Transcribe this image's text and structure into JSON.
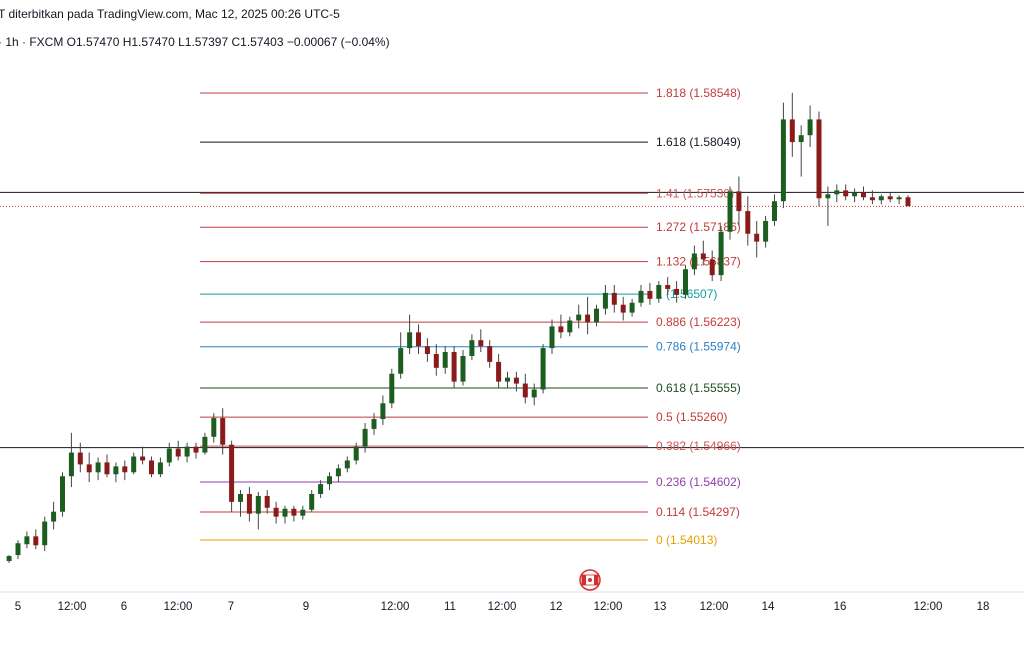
{
  "header": {
    "published": "T diterbitkan pada TradingView.com, Mac 12, 2025 00:26 UTC-5",
    "ohlc": "· 1h · FXCM  O1.57470  H1.57470  L1.57397  C1.57403  −0.00067 (−0.04%)"
  },
  "colors": {
    "up": "#1b5e20",
    "down": "#8b1a1a",
    "fib_red": "#d25353",
    "fib_black": "#131722",
    "fib_teal": "#26a69a",
    "fib_blue": "#2962ff",
    "fib_green": "#2e5a2e",
    "fib_purple": "#8e3fa8",
    "fib_orange": "#e6a000",
    "event_marker": "#d32f2f"
  },
  "event_marker_icon": "canada-flag-icon",
  "chart_data": {
    "type": "candlestick",
    "price_range": [
      1.5378,
      1.587
    ],
    "time_range": [
      0,
      152
    ],
    "fib_levels": [
      {
        "label": "1.818 (1.58548)",
        "price": 1.58548,
        "color": "#c23b3b"
      },
      {
        "label": "1.618 (1.58049)",
        "price": 1.58049,
        "color": "#131722"
      },
      {
        "label": "1.41 (1.57530)",
        "price": 1.5753,
        "color": "#d25353"
      },
      {
        "label": "1.272 (1.57186)",
        "price": 1.57186,
        "color": "#c23b3b"
      },
      {
        "label": "1.132 (1.56837)",
        "price": 1.56837,
        "color": "#c23b3b"
      },
      {
        "label": "1 (1.56507)",
        "price": 1.56507,
        "color": "#139e9e"
      },
      {
        "label": "0.886 (1.56223)",
        "price": 1.56223,
        "color": "#c23b3b"
      },
      {
        "label": "0.786 (1.55974)",
        "price": 1.55974,
        "color": "#2f7fc1"
      },
      {
        "label": "0.618 (1.55555)",
        "price": 1.55555,
        "color": "#1e4d1e"
      },
      {
        "label": "0.5 (1.55260)",
        "price": 1.5526,
        "color": "#c23b3b"
      },
      {
        "label": "0.382 (1.54966)",
        "price": 1.54966,
        "color": "#d25353"
      },
      {
        "label": "0.236 (1.54602)",
        "price": 1.54602,
        "color": "#8e3fa8"
      },
      {
        "label": "0.114 (1.54297)",
        "price": 1.54297,
        "color": "#c23b3b"
      },
      {
        "label": "0 (1.54013)",
        "price": 1.54013,
        "color": "#e6a000"
      }
    ],
    "fib_range_time": [
      38,
      126
    ],
    "horizontal_lines": [
      1.5754,
      1.5495
    ],
    "current_price": 1.57403,
    "x_ticks": [
      {
        "label": "5",
        "t": 0
      },
      {
        "label": "12:00",
        "t": 12
      },
      {
        "label": "6",
        "t": 24
      },
      {
        "label": "12:00",
        "t": 36
      },
      {
        "label": "7",
        "t": 48
      },
      {
        "label": "9",
        "t": 60
      },
      {
        "label": "12:00",
        "t": 72
      },
      {
        "label": "11",
        "t": 84
      },
      {
        "label": "12:00",
        "t": 96
      },
      {
        "label": "12",
        "t": 108
      },
      {
        "label": "12:00",
        "t": 120
      },
      {
        "label": "13",
        "t": 132
      },
      {
        "label": "12:00",
        "t": 144
      },
      {
        "label": "14",
        "t": 156
      },
      {
        "label": "16",
        "t": 168
      },
      {
        "label": "12:00",
        "t": 180
      },
      {
        "label": "18",
        "t": 192
      }
    ],
    "candles": [
      {
        "t": -1,
        "o": 1.538,
        "h": 1.5386,
        "l": 1.5378,
        "c": 1.5385
      },
      {
        "t": 0,
        "o": 1.5386,
        "h": 1.5401,
        "l": 1.5382,
        "c": 1.5398
      },
      {
        "t": 1,
        "o": 1.5397,
        "h": 1.541,
        "l": 1.5393,
        "c": 1.5405
      },
      {
        "t": 2,
        "o": 1.5405,
        "h": 1.5412,
        "l": 1.5392,
        "c": 1.5396
      },
      {
        "t": 3,
        "o": 1.5396,
        "h": 1.5425,
        "l": 1.539,
        "c": 1.542
      },
      {
        "t": 4,
        "o": 1.542,
        "h": 1.544,
        "l": 1.5412,
        "c": 1.543
      },
      {
        "t": 5,
        "o": 1.543,
        "h": 1.547,
        "l": 1.5425,
        "c": 1.5466
      },
      {
        "t": 6,
        "o": 1.5466,
        "h": 1.551,
        "l": 1.5455,
        "c": 1.549
      },
      {
        "t": 7,
        "o": 1.549,
        "h": 1.55,
        "l": 1.547,
        "c": 1.5478
      },
      {
        "t": 8,
        "o": 1.5478,
        "h": 1.549,
        "l": 1.546,
        "c": 1.547
      },
      {
        "t": 9,
        "o": 1.547,
        "h": 1.5485,
        "l": 1.5462,
        "c": 1.548
      },
      {
        "t": 10,
        "o": 1.548,
        "h": 1.5488,
        "l": 1.5465,
        "c": 1.5468
      },
      {
        "t": 11,
        "o": 1.5468,
        "h": 1.548,
        "l": 1.546,
        "c": 1.5476
      },
      {
        "t": 12,
        "o": 1.5476,
        "h": 1.5482,
        "l": 1.5462,
        "c": 1.547
      },
      {
        "t": 13,
        "o": 1.547,
        "h": 1.549,
        "l": 1.5468,
        "c": 1.5486
      },
      {
        "t": 14,
        "o": 1.5486,
        "h": 1.5496,
        "l": 1.5478,
        "c": 1.5482
      },
      {
        "t": 15,
        "o": 1.5482,
        "h": 1.5486,
        "l": 1.5465,
        "c": 1.5468
      },
      {
        "t": 16,
        "o": 1.5468,
        "h": 1.5485,
        "l": 1.5465,
        "c": 1.548
      },
      {
        "t": 17,
        "o": 1.548,
        "h": 1.55,
        "l": 1.5476,
        "c": 1.5494
      },
      {
        "t": 18,
        "o": 1.5494,
        "h": 1.5502,
        "l": 1.5482,
        "c": 1.5486
      },
      {
        "t": 19,
        "o": 1.5486,
        "h": 1.55,
        "l": 1.548,
        "c": 1.5496
      },
      {
        "t": 20,
        "o": 1.5496,
        "h": 1.55,
        "l": 1.5484,
        "c": 1.549
      },
      {
        "t": 21,
        "o": 1.549,
        "h": 1.551,
        "l": 1.5488,
        "c": 1.5506
      },
      {
        "t": 22,
        "o": 1.5506,
        "h": 1.553,
        "l": 1.55,
        "c": 1.5525
      },
      {
        "t": 23,
        "o": 1.5525,
        "h": 1.5535,
        "l": 1.5488,
        "c": 1.5498
      },
      {
        "t": 24,
        "o": 1.5498,
        "h": 1.5502,
        "l": 1.543,
        "c": 1.544
      },
      {
        "t": 25,
        "o": 1.544,
        "h": 1.5452,
        "l": 1.5425,
        "c": 1.5448
      },
      {
        "t": 26,
        "o": 1.5448,
        "h": 1.5455,
        "l": 1.542,
        "c": 1.5428
      },
      {
        "t": 27,
        "o": 1.5428,
        "h": 1.545,
        "l": 1.5412,
        "c": 1.5446
      },
      {
        "t": 28,
        "o": 1.5446,
        "h": 1.5452,
        "l": 1.5428,
        "c": 1.5434
      },
      {
        "t": 29,
        "o": 1.5434,
        "h": 1.544,
        "l": 1.5418,
        "c": 1.5425
      },
      {
        "t": 30,
        "o": 1.5425,
        "h": 1.5436,
        "l": 1.5418,
        "c": 1.5433
      },
      {
        "t": 31,
        "o": 1.5433,
        "h": 1.5436,
        "l": 1.542,
        "c": 1.5426
      },
      {
        "t": 32,
        "o": 1.5426,
        "h": 1.5436,
        "l": 1.5422,
        "c": 1.5432
      },
      {
        "t": 33,
        "o": 1.5432,
        "h": 1.5452,
        "l": 1.543,
        "c": 1.5448
      },
      {
        "t": 34,
        "o": 1.5448,
        "h": 1.5462,
        "l": 1.5444,
        "c": 1.5458
      },
      {
        "t": 35,
        "o": 1.5458,
        "h": 1.547,
        "l": 1.5452,
        "c": 1.5466
      },
      {
        "t": 36,
        "o": 1.5466,
        "h": 1.5478,
        "l": 1.546,
        "c": 1.5474
      },
      {
        "t": 37,
        "o": 1.5474,
        "h": 1.5486,
        "l": 1.547,
        "c": 1.5482
      },
      {
        "t": 38,
        "o": 1.5482,
        "h": 1.55,
        "l": 1.5478,
        "c": 1.5496
      },
      {
        "t": 39,
        "o": 1.5496,
        "h": 1.552,
        "l": 1.549,
        "c": 1.5514
      },
      {
        "t": 40,
        "o": 1.5514,
        "h": 1.553,
        "l": 1.5508,
        "c": 1.5524
      },
      {
        "t": 41,
        "o": 1.5524,
        "h": 1.5548,
        "l": 1.5518,
        "c": 1.554
      },
      {
        "t": 42,
        "o": 1.554,
        "h": 1.5575,
        "l": 1.5535,
        "c": 1.557
      },
      {
        "t": 43,
        "o": 1.557,
        "h": 1.5612,
        "l": 1.5565,
        "c": 1.5596
      },
      {
        "t": 44,
        "o": 1.5596,
        "h": 1.563,
        "l": 1.559,
        "c": 1.5612
      },
      {
        "t": 45,
        "o": 1.5612,
        "h": 1.562,
        "l": 1.559,
        "c": 1.5598
      },
      {
        "t": 46,
        "o": 1.5598,
        "h": 1.5606,
        "l": 1.5582,
        "c": 1.559
      },
      {
        "t": 47,
        "o": 1.559,
        "h": 1.56,
        "l": 1.5568,
        "c": 1.5576
      },
      {
        "t": 48,
        "o": 1.5576,
        "h": 1.5598,
        "l": 1.557,
        "c": 1.5592
      },
      {
        "t": 49,
        "o": 1.5592,
        "h": 1.5598,
        "l": 1.5556,
        "c": 1.5562
      },
      {
        "t": 50,
        "o": 1.5562,
        "h": 1.5594,
        "l": 1.5558,
        "c": 1.5588
      },
      {
        "t": 51,
        "o": 1.5588,
        "h": 1.561,
        "l": 1.5584,
        "c": 1.5604
      },
      {
        "t": 52,
        "o": 1.5604,
        "h": 1.5615,
        "l": 1.5592,
        "c": 1.5598
      },
      {
        "t": 53,
        "o": 1.5598,
        "h": 1.5604,
        "l": 1.5576,
        "c": 1.5582
      },
      {
        "t": 54,
        "o": 1.5582,
        "h": 1.559,
        "l": 1.5556,
        "c": 1.5562
      },
      {
        "t": 55,
        "o": 1.5562,
        "h": 1.5572,
        "l": 1.5556,
        "c": 1.5566
      },
      {
        "t": 56,
        "o": 1.5566,
        "h": 1.5572,
        "l": 1.5552,
        "c": 1.556
      },
      {
        "t": 57,
        "o": 1.556,
        "h": 1.557,
        "l": 1.554,
        "c": 1.5546
      },
      {
        "t": 58,
        "o": 1.5546,
        "h": 1.556,
        "l": 1.5538,
        "c": 1.5554
      },
      {
        "t": 59,
        "o": 1.5554,
        "h": 1.56,
        "l": 1.555,
        "c": 1.5596
      },
      {
        "t": 60,
        "o": 1.5596,
        "h": 1.5625,
        "l": 1.559,
        "c": 1.5618
      },
      {
        "t": 61,
        "o": 1.5618,
        "h": 1.563,
        "l": 1.5606,
        "c": 1.5612
      },
      {
        "t": 62,
        "o": 1.5612,
        "h": 1.5628,
        "l": 1.5608,
        "c": 1.5624
      },
      {
        "t": 63,
        "o": 1.5624,
        "h": 1.564,
        "l": 1.5616,
        "c": 1.563
      },
      {
        "t": 64,
        "o": 1.563,
        "h": 1.5648,
        "l": 1.561,
        "c": 1.5622
      },
      {
        "t": 65,
        "o": 1.5622,
        "h": 1.564,
        "l": 1.5618,
        "c": 1.5636
      },
      {
        "t": 66,
        "o": 1.5636,
        "h": 1.566,
        "l": 1.563,
        "c": 1.5652
      },
      {
        "t": 67,
        "o": 1.5652,
        "h": 1.566,
        "l": 1.5632,
        "c": 1.564
      },
      {
        "t": 68,
        "o": 1.564,
        "h": 1.5648,
        "l": 1.5624,
        "c": 1.5632
      },
      {
        "t": 69,
        "o": 1.5632,
        "h": 1.5646,
        "l": 1.5628,
        "c": 1.5642
      },
      {
        "t": 70,
        "o": 1.5642,
        "h": 1.566,
        "l": 1.5638,
        "c": 1.5654
      },
      {
        "t": 71,
        "o": 1.5654,
        "h": 1.5662,
        "l": 1.564,
        "c": 1.5646
      },
      {
        "t": 72,
        "o": 1.5646,
        "h": 1.5664,
        "l": 1.5642,
        "c": 1.566
      },
      {
        "t": 73,
        "o": 1.566,
        "h": 1.5668,
        "l": 1.565,
        "c": 1.5656
      },
      {
        "t": 74,
        "o": 1.5656,
        "h": 1.5664,
        "l": 1.5642,
        "c": 1.565
      },
      {
        "t": 75,
        "o": 1.565,
        "h": 1.568,
        "l": 1.5646,
        "c": 1.5676
      },
      {
        "t": 76,
        "o": 1.5676,
        "h": 1.57,
        "l": 1.567,
        "c": 1.5692
      },
      {
        "t": 77,
        "o": 1.5692,
        "h": 1.5705,
        "l": 1.568,
        "c": 1.5686
      },
      {
        "t": 78,
        "o": 1.5686,
        "h": 1.5695,
        "l": 1.5664,
        "c": 1.567
      },
      {
        "t": 79,
        "o": 1.567,
        "h": 1.572,
        "l": 1.5664,
        "c": 1.5714
      },
      {
        "t": 80,
        "o": 1.5714,
        "h": 1.576,
        "l": 1.5706,
        "c": 1.5755
      },
      {
        "t": 81,
        "o": 1.5755,
        "h": 1.577,
        "l": 1.572,
        "c": 1.5735
      },
      {
        "t": 82,
        "o": 1.5735,
        "h": 1.575,
        "l": 1.57,
        "c": 1.5712
      },
      {
        "t": 83,
        "o": 1.5712,
        "h": 1.5725,
        "l": 1.5688,
        "c": 1.5704
      },
      {
        "t": 84,
        "o": 1.5704,
        "h": 1.573,
        "l": 1.5698,
        "c": 1.5725
      },
      {
        "t": 85,
        "o": 1.5725,
        "h": 1.5752,
        "l": 1.572,
        "c": 1.5745
      },
      {
        "t": 86,
        "o": 1.5745,
        "h": 1.5845,
        "l": 1.5738,
        "c": 1.5828
      },
      {
        "t": 87,
        "o": 1.5828,
        "h": 1.5855,
        "l": 1.579,
        "c": 1.5805
      },
      {
        "t": 88,
        "o": 1.5805,
        "h": 1.5822,
        "l": 1.577,
        "c": 1.5812
      },
      {
        "t": 89,
        "o": 1.5812,
        "h": 1.5842,
        "l": 1.58,
        "c": 1.5828
      },
      {
        "t": 90,
        "o": 1.5828,
        "h": 1.5836,
        "l": 1.574,
        "c": 1.5748
      },
      {
        "t": 91,
        "o": 1.5748,
        "h": 1.576,
        "l": 1.572,
        "c": 1.5752
      },
      {
        "t": 92,
        "o": 1.5752,
        "h": 1.5762,
        "l": 1.5744,
        "c": 1.5756
      },
      {
        "t": 93,
        "o": 1.5756,
        "h": 1.5762,
        "l": 1.5746,
        "c": 1.575
      },
      {
        "t": 94,
        "o": 1.575,
        "h": 1.5758,
        "l": 1.5744,
        "c": 1.5754
      },
      {
        "t": 95,
        "o": 1.5754,
        "h": 1.576,
        "l": 1.5746,
        "c": 1.5749
      },
      {
        "t": 96,
        "o": 1.5749,
        "h": 1.5756,
        "l": 1.5742,
        "c": 1.5746
      },
      {
        "t": 97,
        "o": 1.5746,
        "h": 1.5752,
        "l": 1.5742,
        "c": 1.575
      },
      {
        "t": 98,
        "o": 1.575,
        "h": 1.5754,
        "l": 1.5744,
        "c": 1.5747
      },
      {
        "t": 99,
        "o": 1.5747,
        "h": 1.5751,
        "l": 1.5742,
        "c": 1.5749
      },
      {
        "t": 100,
        "o": 1.5749,
        "h": 1.5751,
        "l": 1.574,
        "c": 1.574
      }
    ]
  }
}
